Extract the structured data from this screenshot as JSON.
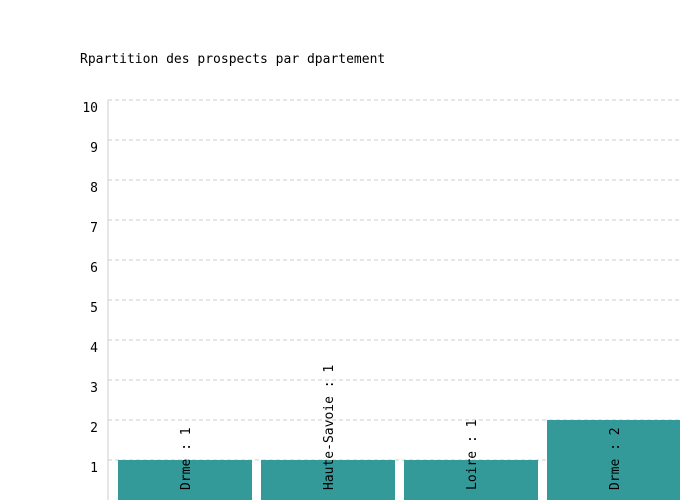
{
  "chart_data": {
    "type": "bar",
    "title": "Rpartition des prospects par dpartement",
    "categories": [
      "Drme : 1",
      "Haute-Savoie : 1",
      "Loire : 1",
      "Drme : 2"
    ],
    "values": [
      1,
      1,
      1,
      2
    ],
    "color": "#339a99",
    "ylim": [
      0,
      10
    ],
    "yticks": [
      1,
      2,
      3,
      4,
      5,
      6,
      7,
      8,
      9,
      10
    ],
    "grid": true
  }
}
